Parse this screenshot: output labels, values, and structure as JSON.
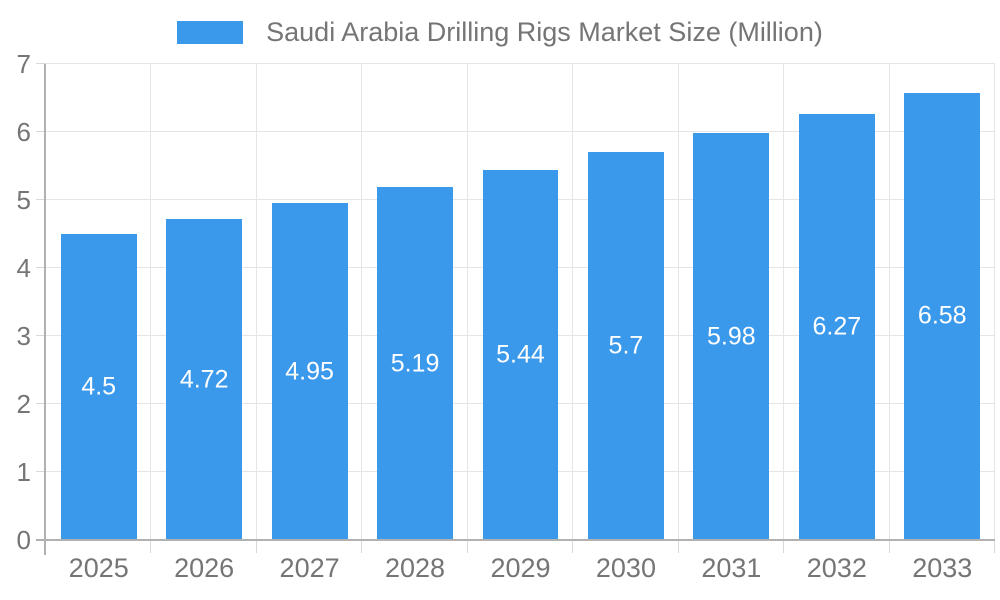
{
  "legend": {
    "label": "Saudi Arabia Drilling Rigs Market Size (Million)"
  },
  "colors": {
    "bar": "#3B99EC",
    "axis_line": "#b1b1b1",
    "gridline": "#e5e5e5",
    "tick": "#d9d9d9",
    "label_text": "#757575",
    "value_text": "#ffffff"
  },
  "chart_data": {
    "type": "bar",
    "title": "Saudi Arabia Drilling Rigs Market Size (Million)",
    "categories": [
      "2025",
      "2026",
      "2027",
      "2028",
      "2029",
      "2030",
      "2031",
      "2032",
      "2033"
    ],
    "values": [
      4.5,
      4.72,
      4.95,
      5.19,
      5.44,
      5.7,
      5.98,
      6.27,
      6.58
    ],
    "value_labels": [
      "4.5",
      "4.72",
      "4.95",
      "5.19",
      "5.44",
      "5.7",
      "5.98",
      "6.27",
      "6.58"
    ],
    "xlabel": "",
    "ylabel": "",
    "ylim": [
      0,
      7
    ],
    "yticks": [
      0,
      1,
      2,
      3,
      4,
      5,
      6,
      7
    ],
    "grid": true,
    "legend_position": "top",
    "bar_width_fraction": 0.72
  }
}
